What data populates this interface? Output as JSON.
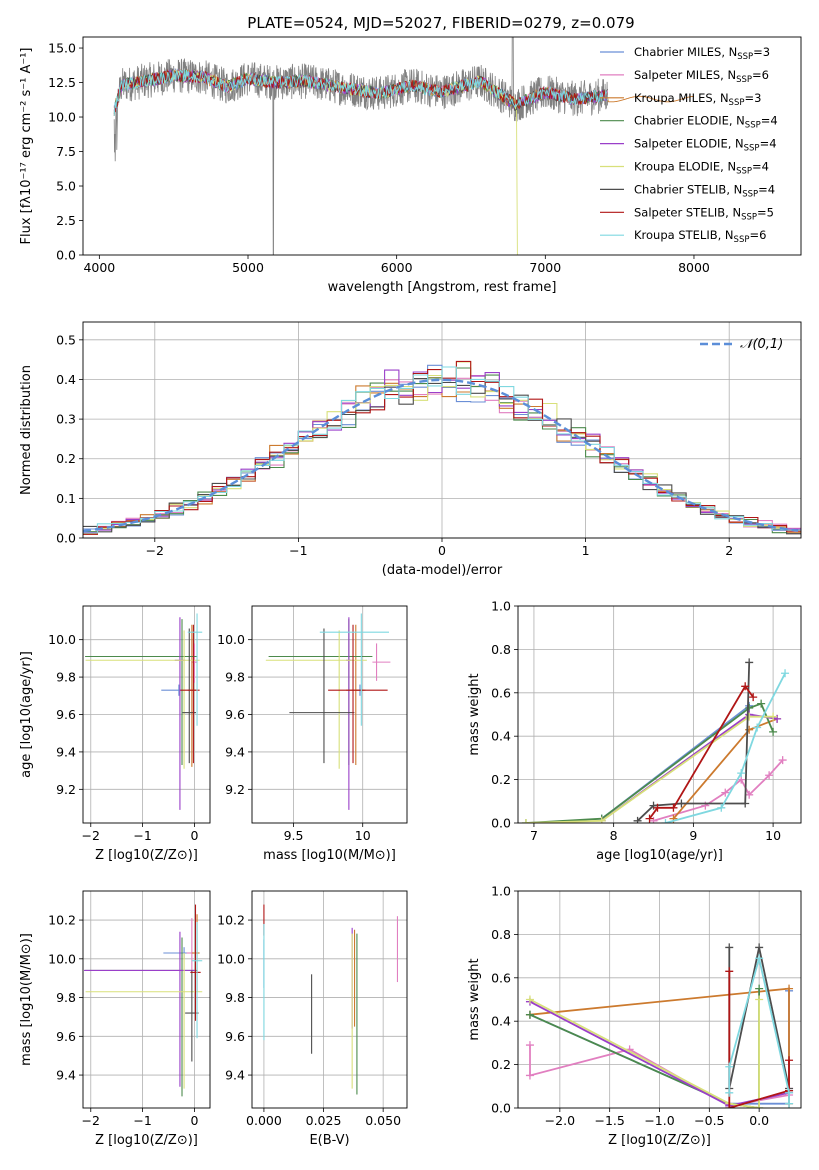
{
  "figure": {
    "title": "PLATE=0524, MJD=52027, FIBERID=0279, z=0.079",
    "colors": {
      "Chabrier MILES": "#6b8fd6",
      "Salpeter MILES": "#e17fc0",
      "Kroupa MILES": "#cc7a2e",
      "Chabrier ELODIE": "#4c8a4c",
      "Salpeter ELODIE": "#9a3fc9",
      "Kroupa ELODIE": "#d8e07a",
      "Chabrier STELIB": "#4d4d4d",
      "Salpeter STELIB": "#b01616",
      "Kroupa STELIB": "#7fd8e0"
    }
  },
  "chart_data": [
    {
      "id": "spectrum",
      "type": "line",
      "xlabel": "wavelength [Angstrom, rest frame]",
      "ylabel": "Flux [fλ10⁻¹⁷ erg cm⁻² s⁻¹ A⁻¹]",
      "xlim": [
        3890,
        8720
      ],
      "ylim": [
        0,
        15.8
      ],
      "xticks": [
        4000,
        5000,
        6000,
        7000,
        8000
      ],
      "yticks": [
        0.0,
        2.5,
        5.0,
        7.5,
        10.0,
        12.5,
        15.0
      ],
      "data_line_color": "#808080",
      "data_shape_points": [
        [
          4100,
          10.5
        ],
        [
          4150,
          12.3
        ],
        [
          4300,
          12.6
        ],
        [
          4500,
          13.0
        ],
        [
          4700,
          12.9
        ],
        [
          4861,
          12.2
        ],
        [
          5000,
          12.8
        ],
        [
          5175,
          12.5
        ],
        [
          5400,
          12.6
        ],
        [
          5600,
          12.2
        ],
        [
          5890,
          11.7
        ],
        [
          6100,
          12.3
        ],
        [
          6300,
          11.8
        ],
        [
          6563,
          12.6
        ],
        [
          6800,
          10.9
        ],
        [
          7000,
          11.8
        ],
        [
          7200,
          11.3
        ],
        [
          7420,
          11.6
        ]
      ],
      "legend": [
        {
          "label": "Chabrier MILES, N",
          "sub": "SSP",
          "suffix": "=3"
        },
        {
          "label": "Salpeter MILES, N",
          "sub": "SSP",
          "suffix": "=6"
        },
        {
          "label": "Kroupa MILES, N",
          "sub": "SSP",
          "suffix": "=3"
        },
        {
          "label": "Chabrier ELODIE, N",
          "sub": "SSP",
          "suffix": "=4"
        },
        {
          "label": "Salpeter ELODIE, N",
          "sub": "SSP",
          "suffix": "=4"
        },
        {
          "label": "Kroupa ELODIE, N",
          "sub": "SSP",
          "suffix": "=4"
        },
        {
          "label": "Chabrier STELIB, N",
          "sub": "SSP",
          "suffix": "=4"
        },
        {
          "label": "Salpeter STELIB, N",
          "sub": "SSP",
          "suffix": "=5"
        },
        {
          "label": "Kroupa STELIB, N",
          "sub": "SSP",
          "suffix": "=6"
        }
      ],
      "legend_placement": "upper-right"
    },
    {
      "id": "residuals",
      "type": "step",
      "xlabel": "(data-model)/error",
      "ylabel": "Normed distribution",
      "xlim": [
        -2.5,
        2.5
      ],
      "ylim": [
        0,
        0.545
      ],
      "xticks": [
        -2,
        -1,
        0,
        1,
        2
      ],
      "yticks": [
        0.0,
        0.1,
        0.2,
        0.3,
        0.4,
        0.5
      ],
      "bin_width": 0.1,
      "grid": true,
      "reference_curve": {
        "label": "𝒩(0,1)",
        "style": "dashed",
        "color": "#5b8ed8"
      },
      "legend_placement": "upper-right"
    },
    {
      "id": "age-vs-Z",
      "type": "errorbar",
      "xlabel": "Z [log10(Z/Z⊙)]",
      "ylabel": "age  [log10(age/yr)]",
      "xlim": [
        -2.15,
        0.3
      ],
      "ylim": [
        9.02,
        10.18
      ],
      "xticks": [
        -2,
        -1,
        0
      ],
      "yticks": [
        9.2,
        9.4,
        9.6,
        9.8,
        10.0
      ],
      "grid": true,
      "points": [
        {
          "model": "Chabrier MILES",
          "x": -0.3,
          "y": 9.73,
          "xerr": [
            0.34,
            0.04
          ],
          "yerr": [
            0.03,
            0.03
          ]
        },
        {
          "model": "Salpeter MILES",
          "x": 0.0,
          "y": 9.88,
          "xerr": [
            0.05,
            0.05
          ],
          "yerr": [
            0.11,
            0.1
          ]
        },
        {
          "model": "Kroupa MILES",
          "x": -0.05,
          "y": 9.73,
          "xerr": [
            0.08,
            0.08
          ],
          "yerr": [
            0.41,
            0.35
          ]
        },
        {
          "model": "Chabrier ELODIE",
          "x": -0.24,
          "y": 9.91,
          "xerr": [
            1.87,
            0.3
          ],
          "yerr": [
            0.58,
            0.2
          ]
        },
        {
          "model": "Salpeter ELODIE",
          "x": -0.28,
          "y": 9.89,
          "xerr": [
            0.1,
            0.1
          ],
          "yerr": [
            0.8,
            0.23
          ]
        },
        {
          "model": "Kroupa ELODIE",
          "x": -0.2,
          "y": 9.89,
          "xerr": [
            1.9,
            0.3
          ],
          "yerr": [
            0.58,
            0.16
          ]
        },
        {
          "model": "Chabrier STELIB",
          "x": -0.1,
          "y": 9.61,
          "xerr": [
            0.13,
            0.13
          ],
          "yerr": [
            0.27,
            0.45
          ]
        },
        {
          "model": "Salpeter STELIB",
          "x": -0.02,
          "y": 9.73,
          "xerr": [
            0.25,
            0.12
          ],
          "yerr": [
            0.39,
            0.35
          ]
        },
        {
          "model": "Kroupa STELIB",
          "x": 0.05,
          "y": 10.04,
          "xerr": [
            0.18,
            0.1
          ],
          "yerr": [
            0.5,
            0.1
          ]
        }
      ]
    },
    {
      "id": "age-vs-mass",
      "type": "errorbar",
      "xlabel": "mass [log10(M/M⊙)]",
      "ylabel": "",
      "xlim": [
        9.2,
        10.32
      ],
      "ylim": [
        9.02,
        10.18
      ],
      "xticks": [
        9.5,
        10.0
      ],
      "yticks": [
        9.2,
        9.4,
        9.6,
        9.8,
        10.0
      ],
      "grid": true,
      "points": [
        {
          "model": "Chabrier MILES",
          "x": 9.98,
          "y": 9.73,
          "xerr": [
            0.03,
            0.03
          ],
          "yerr": [
            0.03,
            0.03
          ]
        },
        {
          "model": "Salpeter MILES",
          "x": 10.1,
          "y": 9.88,
          "xerr": [
            0.03,
            0.1
          ],
          "yerr": [
            0.1,
            0.1
          ]
        },
        {
          "model": "Kroupa MILES",
          "x": 9.95,
          "y": 9.73,
          "xerr": [
            0.07,
            0.07
          ],
          "yerr": [
            0.4,
            0.35
          ]
        },
        {
          "model": "Chabrier ELODIE",
          "x": 9.9,
          "y": 9.91,
          "xerr": [
            0.58,
            0.17
          ],
          "yerr": [
            0.58,
            0.2
          ]
        },
        {
          "model": "Salpeter ELODIE",
          "x": 9.9,
          "y": 9.89,
          "xerr": [
            0.02,
            0.02
          ],
          "yerr": [
            0.8,
            0.23
          ]
        },
        {
          "model": "Kroupa ELODIE",
          "x": 9.83,
          "y": 9.89,
          "xerr": [
            0.53,
            0.2
          ],
          "yerr": [
            0.58,
            0.16
          ]
        },
        {
          "model": "Chabrier STELIB",
          "x": 9.72,
          "y": 9.61,
          "xerr": [
            0.25,
            0.22
          ],
          "yerr": [
            0.27,
            0.45
          ]
        },
        {
          "model": "Salpeter STELIB",
          "x": 9.93,
          "y": 9.73,
          "xerr": [
            0.18,
            0.25
          ],
          "yerr": [
            0.39,
            0.35
          ]
        },
        {
          "model": "Kroupa STELIB",
          "x": 9.99,
          "y": 10.04,
          "xerr": [
            0.3,
            0.2
          ],
          "yerr": [
            0.5,
            0.1
          ]
        }
      ]
    },
    {
      "id": "weight-vs-age",
      "type": "line",
      "xlabel": "age  [log10(age/yr)]",
      "ylabel": "mass weight",
      "xlim": [
        6.8,
        10.35
      ],
      "ylim": [
        0.0,
        1.0
      ],
      "xticks": [
        7,
        8,
        9,
        10
      ],
      "yticks": [
        0.0,
        0.2,
        0.4,
        0.6,
        0.8,
        1.0
      ],
      "grid": true,
      "series": [
        {
          "model": "Chabrier MILES",
          "x": [
            7.85,
            9.7
          ],
          "y": [
            0.02,
            0.54
          ]
        },
        {
          "model": "Salpeter MILES",
          "x": [
            8.5,
            9.15,
            9.4,
            9.6,
            9.7,
            9.95,
            10.12
          ],
          "y": [
            0.01,
            0.08,
            0.14,
            0.2,
            0.13,
            0.22,
            0.29
          ]
        },
        {
          "model": "Kroupa MILES",
          "x": [
            8.75,
            9.7,
            10.05
          ],
          "y": [
            0.02,
            0.43,
            0.48
          ]
        },
        {
          "model": "Chabrier ELODIE",
          "x": [
            6.9,
            7.85,
            9.7,
            9.85,
            10.0
          ],
          "y": [
            0.0,
            0.02,
            0.53,
            0.55,
            0.42
          ]
        },
        {
          "model": "Salpeter ELODIE",
          "x": [
            7.85,
            9.7,
            10.05
          ],
          "y": [
            0.01,
            0.5,
            0.48
          ]
        },
        {
          "model": "Kroupa ELODIE",
          "x": [
            6.9,
            7.85,
            9.7,
            10.0
          ],
          "y": [
            0.0,
            0.01,
            0.49,
            0.49
          ]
        },
        {
          "model": "Chabrier STELIB",
          "x": [
            8.3,
            8.5,
            8.85,
            9.65,
            9.7
          ],
          "y": [
            0.01,
            0.08,
            0.09,
            0.09,
            0.74
          ]
        },
        {
          "model": "Salpeter STELIB",
          "x": [
            8.45,
            8.55,
            8.75,
            9.65,
            9.75
          ],
          "y": [
            0.02,
            0.07,
            0.07,
            0.63,
            0.58
          ]
        },
        {
          "model": "Kroupa STELIB",
          "x": [
            8.65,
            9.35,
            9.6,
            9.8,
            10.15
          ],
          "y": [
            0.0,
            0.07,
            0.23,
            0.44,
            0.69
          ]
        }
      ]
    },
    {
      "id": "mass-vs-Z",
      "type": "errorbar",
      "xlabel": "Z [log10(Z/Z⊙)]",
      "ylabel": "mass [log10(M/M⊙)]",
      "xlim": [
        -2.15,
        0.3
      ],
      "ylim": [
        9.23,
        10.35
      ],
      "xticks": [
        -2,
        -1,
        0
      ],
      "yticks": [
        9.4,
        9.6,
        9.8,
        10.0,
        10.2
      ],
      "grid": true,
      "points": [
        {
          "model": "Chabrier MILES",
          "x": -0.2,
          "y": 10.03,
          "xerr": [
            0.4,
            0.1
          ],
          "yerr": [
            0.03,
            0.03
          ]
        },
        {
          "model": "Salpeter MILES",
          "x": -0.05,
          "y": 10.03,
          "xerr": [
            0.1,
            0.1
          ],
          "yerr": [
            0.1,
            0.18
          ]
        },
        {
          "model": "Kroupa MILES",
          "x": 0.05,
          "y": 10.03,
          "xerr": [
            0.1,
            0.05
          ],
          "yerr": [
            0.2,
            0.2
          ]
        },
        {
          "model": "Chabrier ELODIE",
          "x": -0.24,
          "y": 9.94,
          "xerr": [
            1.87,
            0.3
          ],
          "yerr": [
            0.65,
            0.17
          ]
        },
        {
          "model": "Salpeter ELODIE",
          "x": -0.28,
          "y": 9.94,
          "xerr": [
            1.85,
            0.3
          ],
          "yerr": [
            0.6,
            0.2
          ]
        },
        {
          "model": "Kroupa ELODIE",
          "x": -0.2,
          "y": 9.83,
          "xerr": [
            1.9,
            0.35
          ],
          "yerr": [
            0.5,
            0.2
          ]
        },
        {
          "model": "Chabrier STELIB",
          "x": -0.05,
          "y": 9.72,
          "xerr": [
            0.13,
            0.13
          ],
          "yerr": [
            0.25,
            0.22
          ]
        },
        {
          "model": "Salpeter STELIB",
          "x": 0.02,
          "y": 9.93,
          "xerr": [
            0.1,
            0.1
          ],
          "yerr": [
            0.25,
            0.35
          ]
        },
        {
          "model": "Kroupa STELIB",
          "x": 0.05,
          "y": 9.99,
          "xerr": [
            0.1,
            0.1
          ],
          "yerr": [
            0.4,
            0.2
          ]
        }
      ]
    },
    {
      "id": "mass-vs-ebv",
      "type": "errorbar",
      "xlabel": "E(B-V)",
      "ylabel": "",
      "xlim": [
        -0.005,
        0.06
      ],
      "ylim": [
        9.23,
        10.35
      ],
      "xticks": [
        0.0,
        0.025,
        0.05
      ],
      "xtick_labels": [
        "0.000",
        "0.025",
        "0.050"
      ],
      "yticks": [
        9.4,
        9.6,
        9.8,
        10.0,
        10.2
      ],
      "grid": true,
      "points": [
        {
          "model": "Chabrier MILES",
          "x": 0.0,
          "y": 10.0,
          "xerr": [
            0,
            0
          ],
          "yerr": [
            0.15,
            0.1
          ]
        },
        {
          "model": "Salpeter MILES",
          "x": 0.056,
          "y": 10.05,
          "xerr": [
            0,
            0
          ],
          "yerr": [
            0.17,
            0.17
          ]
        },
        {
          "model": "Kroupa MILES",
          "x": 0.038,
          "y": 10.0,
          "xerr": [
            0,
            0
          ],
          "yerr": [
            0.35,
            0.15
          ]
        },
        {
          "model": "Chabrier ELODIE",
          "x": 0.039,
          "y": 9.83,
          "xerr": [
            0,
            0
          ],
          "yerr": [
            0.53,
            0.3
          ]
        },
        {
          "model": "Salpeter ELODIE",
          "x": 0.037,
          "y": 9.94,
          "xerr": [
            0,
            0
          ],
          "yerr": [
            0.3,
            0.22
          ]
        },
        {
          "model": "Kroupa ELODIE",
          "x": 0.037,
          "y": 9.73,
          "xerr": [
            0,
            0
          ],
          "yerr": [
            0.4,
            0.4
          ]
        },
        {
          "model": "Chabrier STELIB",
          "x": 0.02,
          "y": 9.72,
          "xerr": [
            0,
            0
          ],
          "yerr": [
            0.21,
            0.2
          ]
        },
        {
          "model": "Salpeter STELIB",
          "x": 0.0,
          "y": 10.2,
          "xerr": [
            0,
            0
          ],
          "yerr": [
            0.08,
            0.08
          ]
        },
        {
          "model": "Kroupa STELIB",
          "x": 0.0,
          "y": 9.88,
          "xerr": [
            0,
            0
          ],
          "yerr": [
            0.3,
            0.3
          ]
        }
      ]
    },
    {
      "id": "weight-vs-Z",
      "type": "line",
      "xlabel": "Z [log10(Z/Z⊙)]",
      "ylabel": "mass weight",
      "xlim": [
        -2.42,
        0.42
      ],
      "ylim": [
        0.0,
        1.0
      ],
      "xticks": [
        -2.0,
        -1.5,
        -1.0,
        -0.5,
        0.0
      ],
      "xtick_labels": [
        "−2.0",
        "−1.5",
        "−1.0",
        "−0.5",
        "0.0"
      ],
      "yticks": [
        0.0,
        0.2,
        0.4,
        0.6,
        0.8,
        1.0
      ],
      "grid": true,
      "series": [
        {
          "model": "Chabrier MILES",
          "x": [
            -2.3,
            -0.3,
            0.3,
            0.3
          ],
          "y": [
            0.43,
            0.02,
            0.02,
            0.54
          ]
        },
        {
          "model": "Salpeter MILES",
          "x": [
            -2.3,
            -2.3,
            -1.3,
            -0.3,
            0.3,
            0.3
          ],
          "y": [
            0.29,
            0.15,
            0.27,
            0.01,
            0.06,
            0.09
          ]
        },
        {
          "model": "Kroupa MILES",
          "x": [
            -2.3,
            0.3,
            0.3
          ],
          "y": [
            0.43,
            0.55,
            0.02
          ]
        },
        {
          "model": "Chabrier ELODIE",
          "x": [
            -2.3,
            -0.3,
            0.0,
            0.0
          ],
          "y": [
            0.43,
            0.02,
            0.0,
            0.55
          ]
        },
        {
          "model": "Salpeter ELODIE",
          "x": [
            -2.3,
            -0.3,
            0.3
          ],
          "y": [
            0.49,
            0.01,
            0.07
          ]
        },
        {
          "model": "Kroupa ELODIE",
          "x": [
            -2.3,
            -0.3,
            0.0,
            0.0
          ],
          "y": [
            0.5,
            0.02,
            0.0,
            0.5
          ]
        },
        {
          "model": "Chabrier STELIB",
          "x": [
            -0.3,
            -0.3,
            0.0,
            0.3,
            0.3
          ],
          "y": [
            0.74,
            0.09,
            0.74,
            0.09,
            0.08
          ]
        },
        {
          "model": "Salpeter STELIB",
          "x": [
            -0.3,
            -0.3,
            0.3,
            0.3
          ],
          "y": [
            0.63,
            0.0,
            0.08,
            0.22
          ]
        },
        {
          "model": "Kroupa STELIB",
          "x": [
            -0.3,
            -0.3,
            0.0,
            0.3,
            0.3
          ],
          "y": [
            0.07,
            0.19,
            0.69,
            0.07,
            0.02
          ]
        }
      ]
    }
  ]
}
